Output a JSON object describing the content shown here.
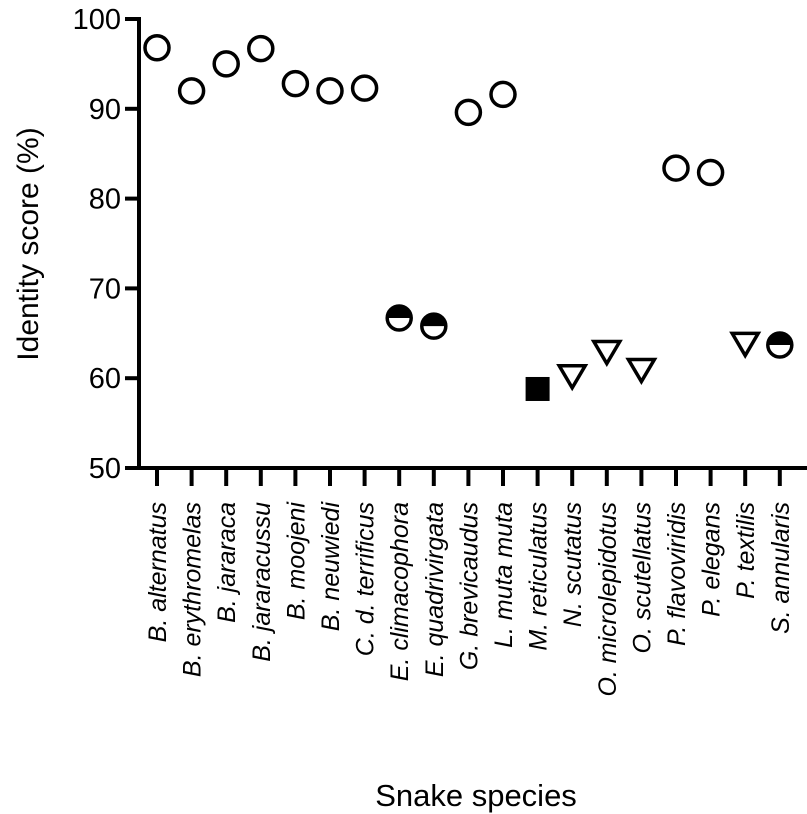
{
  "chart_data": {
    "type": "scatter",
    "title": "",
    "xlabel": "Snake species",
    "ylabel": "Identity score (%)",
    "ylim": [
      50,
      100
    ],
    "yticks": [
      50,
      60,
      70,
      80,
      90,
      100
    ],
    "grid": false,
    "legend": "none",
    "categories": [
      "B. alternatus",
      "B. erythromelas",
      "B. jararaca",
      "B. jararacussu",
      "B. moojeni",
      "B. neuwiedi",
      "C. d. terrificus",
      "E. climacophora",
      "E. quadrivirgata",
      "G. brevicaudus",
      "L. muta muta",
      "M. reticulatus",
      "N. scutatus",
      "O. microlepidotus",
      "O. scutellatus",
      "P. flavoviridis",
      "P. elegans",
      "P. textilis",
      "S. annularis"
    ],
    "points": [
      {
        "category": "B. alternatus",
        "y": 96.8,
        "marker": "open-circle"
      },
      {
        "category": "B. erythromelas",
        "y": 92.0,
        "marker": "open-circle"
      },
      {
        "category": "B. jararaca",
        "y": 95.0,
        "marker": "open-circle"
      },
      {
        "category": "B. jararacussu",
        "y": 96.7,
        "marker": "open-circle"
      },
      {
        "category": "B. moojeni",
        "y": 92.8,
        "marker": "open-circle"
      },
      {
        "category": "B. neuwiedi",
        "y": 92.0,
        "marker": "open-circle"
      },
      {
        "category": "C. d. terrificus",
        "y": 92.3,
        "marker": "open-circle"
      },
      {
        "category": "E. climacophora",
        "y": 66.7,
        "marker": "half-filled-circle"
      },
      {
        "category": "E. quadrivirgata",
        "y": 65.8,
        "marker": "half-filled-circle"
      },
      {
        "category": "G. brevicaudus",
        "y": 89.6,
        "marker": "open-circle"
      },
      {
        "category": "L. muta muta",
        "y": 91.6,
        "marker": "open-circle"
      },
      {
        "category": "M. reticulatus",
        "y": 58.8,
        "marker": "filled-square"
      },
      {
        "category": "N. scutatus",
        "y": 60.3,
        "marker": "open-triangle-down"
      },
      {
        "category": "O. microlepidotus",
        "y": 63.0,
        "marker": "open-triangle-down"
      },
      {
        "category": "O. scutellatus",
        "y": 61.0,
        "marker": "open-triangle-down"
      },
      {
        "category": "P. flavoviridis",
        "y": 83.4,
        "marker": "open-circle"
      },
      {
        "category": "P. elegans",
        "y": 82.9,
        "marker": "open-circle"
      },
      {
        "category": "P. textilis",
        "y": 63.9,
        "marker": "open-triangle-down"
      },
      {
        "category": "S. annularis",
        "y": 63.7,
        "marker": "half-filled-circle"
      }
    ]
  }
}
